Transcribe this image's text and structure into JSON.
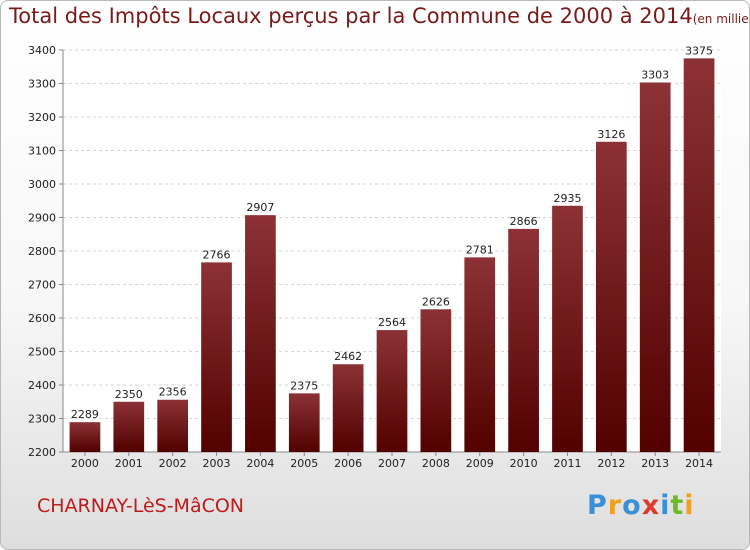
{
  "title": {
    "main": "Total des Impôts Locaux perçus par la Commune de 2000 à 2014",
    "unit": "(en milliers d'€)"
  },
  "commune": "CHARNAY-LèS-MâCON",
  "logo": {
    "text": "Proxiti",
    "letters": [
      {
        "ch": "P",
        "color": "#3b8fd4"
      },
      {
        "ch": "r",
        "color": "#f0a020"
      },
      {
        "ch": "o",
        "color": "#3b8fd4"
      },
      {
        "ch": "x",
        "color": "#e23a2a"
      },
      {
        "ch": "i",
        "color": "#3b8fd4"
      },
      {
        "ch": "t",
        "color": "#6aba2a"
      },
      {
        "ch": "i",
        "color": "#f0a020"
      }
    ]
  },
  "colors": {
    "bar_top": "#8c3236",
    "bar_bottom": "#520000",
    "title": "#7a1a1a",
    "commune": "#c21a1a"
  },
  "chart_data": {
    "type": "bar",
    "categories": [
      "2000",
      "2001",
      "2002",
      "2003",
      "2004",
      "2005",
      "2006",
      "2007",
      "2008",
      "2009",
      "2010",
      "2011",
      "2012",
      "2013",
      "2014"
    ],
    "values": [
      2289,
      2350,
      2356,
      2766,
      2907,
      2375,
      2462,
      2564,
      2626,
      2781,
      2866,
      2935,
      3126,
      3303,
      3375
    ],
    "ylim": [
      2200,
      3400
    ],
    "yticks": [
      2200,
      2300,
      2400,
      2500,
      2600,
      2700,
      2800,
      2900,
      3000,
      3100,
      3200,
      3300,
      3400
    ],
    "grid": true,
    "xlabel": "",
    "ylabel": ""
  }
}
